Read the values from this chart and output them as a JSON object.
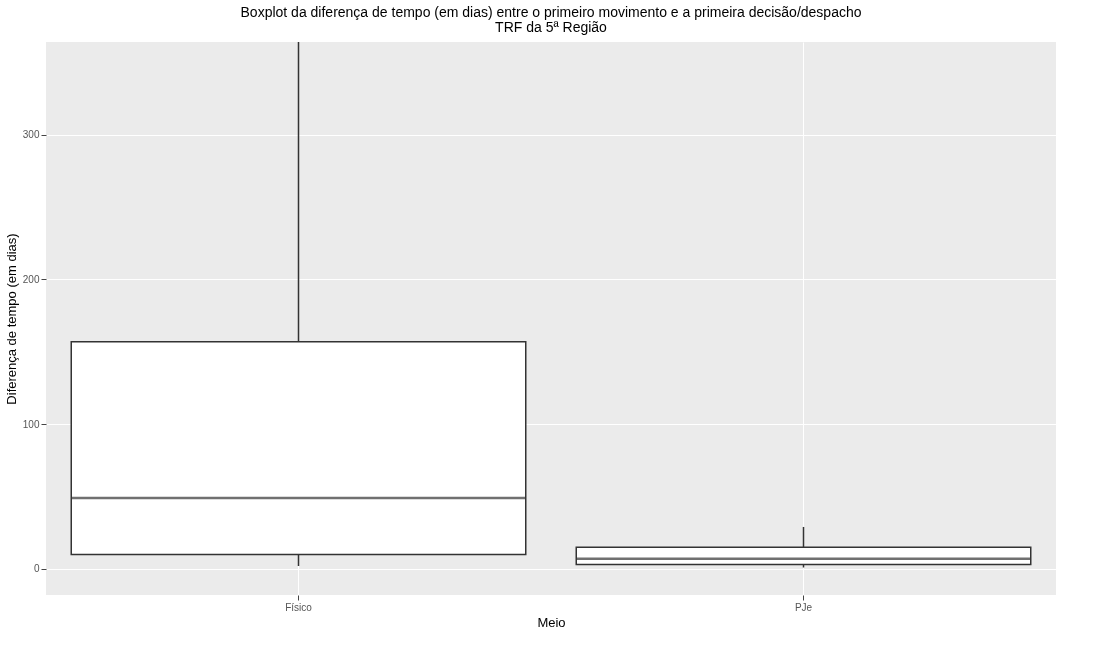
{
  "chart_data": {
    "type": "box",
    "title": "Boxplot da diferença de tempo (em dias) entre o primeiro movimento e a primeira decisão/despacho",
    "subtitle": "TRF da 5ª Região",
    "xlabel": "Meio",
    "ylabel": "Diferença de tempo (em dias)",
    "categories": [
      "Físico",
      "PJe"
    ],
    "boxes": [
      {
        "low": 2,
        "q1": 10,
        "median": 49,
        "q3": 157,
        "high": 364
      },
      {
        "low": 1,
        "q1": 3,
        "median": 7,
        "q3": 15,
        "high": 29
      }
    ],
    "ylim": [
      -18,
      364
    ],
    "yticks": [
      0,
      100,
      200,
      300
    ],
    "grid": true
  }
}
